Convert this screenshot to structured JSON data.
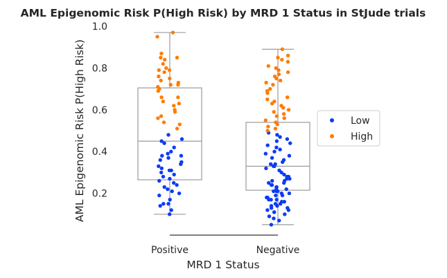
{
  "chart_data": {
    "type": "box+strip",
    "title": "AML Epigenomic Risk P(High Risk) by MRD 1 Status in StJude trials",
    "xlabel": "MRD 1 Status",
    "ylabel": "AML Epigenomic Risk P(High Risk)",
    "categories": [
      "Positive",
      "Negative"
    ],
    "ylim": [
      0.0,
      1.0
    ],
    "yticks": [
      0.2,
      0.4,
      0.6,
      0.8,
      1.0
    ],
    "ytick_labels": [
      "0.2",
      "0.4",
      "0.6",
      "0.8",
      "1.0"
    ],
    "grid": false,
    "legend": {
      "placement": "right",
      "entries": [
        {
          "label": "Low",
          "color": "#0b3cf5"
        },
        {
          "label": "High",
          "color": "#ff7c00"
        }
      ]
    },
    "colors": {
      "box_edge": "#9a9a9a",
      "axis": "#333333",
      "Low": "#0b3cf5",
      "High": "#ff7c00"
    },
    "boxes": [
      {
        "category": "Positive",
        "whisker_low": 0.1,
        "q1": 0.265,
        "median": 0.45,
        "q3": 0.705,
        "whisker_high": 0.97
      },
      {
        "category": "Negative",
        "whisker_low": 0.05,
        "q1": 0.215,
        "median": 0.33,
        "q3": 0.54,
        "whisker_high": 0.89
      }
    ],
    "series": [
      {
        "name": "Low",
        "points": [
          {
            "category": "Positive",
            "values": [
              0.1,
              0.12,
              0.14,
              0.15,
              0.15,
              0.17,
              0.19,
              0.2,
              0.21,
              0.22,
              0.23,
              0.24,
              0.25,
              0.26,
              0.27,
              0.28,
              0.29,
              0.3,
              0.31,
              0.31,
              0.32,
              0.33,
              0.34,
              0.35,
              0.36,
              0.37,
              0.38,
              0.38,
              0.39,
              0.4,
              0.42,
              0.44,
              0.45,
              0.46,
              0.48
            ]
          },
          {
            "category": "Negative",
            "values": [
              0.05,
              0.07,
              0.08,
              0.09,
              0.1,
              0.11,
              0.11,
              0.12,
              0.12,
              0.13,
              0.13,
              0.14,
              0.14,
              0.15,
              0.15,
              0.16,
              0.16,
              0.17,
              0.17,
              0.17,
              0.18,
              0.18,
              0.19,
              0.19,
              0.2,
              0.2,
              0.21,
              0.21,
              0.21,
              0.22,
              0.22,
              0.23,
              0.23,
              0.24,
              0.24,
              0.25,
              0.25,
              0.26,
              0.26,
              0.27,
              0.27,
              0.28,
              0.28,
              0.29,
              0.3,
              0.31,
              0.32,
              0.33,
              0.33,
              0.34,
              0.34,
              0.35,
              0.36,
              0.37,
              0.38,
              0.39,
              0.4,
              0.41,
              0.42,
              0.43,
              0.44,
              0.45,
              0.46,
              0.47,
              0.48,
              0.49
            ]
          }
        ]
      },
      {
        "name": "High",
        "points": [
          {
            "category": "Positive",
            "values": [
              0.51,
              0.53,
              0.54,
              0.56,
              0.57,
              0.59,
              0.6,
              0.62,
              0.63,
              0.64,
              0.66,
              0.66,
              0.69,
              0.7,
              0.71,
              0.72,
              0.72,
              0.73,
              0.74,
              0.75,
              0.76,
              0.78,
              0.79,
              0.79,
              0.8,
              0.82,
              0.84,
              0.85,
              0.85,
              0.87,
              0.95,
              0.97
            ]
          },
          {
            "category": "Negative",
            "values": [
              0.5,
              0.51,
              0.52,
              0.53,
              0.54,
              0.55,
              0.56,
              0.57,
              0.58,
              0.59,
              0.6,
              0.61,
              0.62,
              0.63,
              0.64,
              0.65,
              0.66,
              0.68,
              0.69,
              0.7,
              0.72,
              0.73,
              0.74,
              0.75,
              0.76,
              0.77,
              0.78,
              0.79,
              0.8,
              0.81,
              0.83,
              0.84,
              0.85,
              0.86,
              0.89
            ]
          }
        ]
      }
    ]
  }
}
